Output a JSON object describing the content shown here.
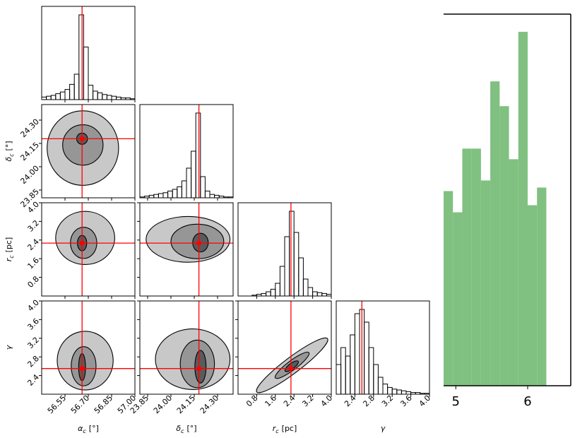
{
  "chart_data": [
    {
      "type": "corner",
      "parameters": [
        {
          "label": {
            "symbol": "α",
            "sub": "c",
            "unit": "[°]"
          },
          "lim": [
            56.4,
            57.0
          ],
          "ticks": [
            56.55,
            {
              "value": 56.7,
              "label": "56.70"
            },
            56.85,
            {
              "value": 57.0,
              "label": "57.00"
            }
          ],
          "truth": 56.66,
          "bins": [
            56.4,
            56.43,
            56.46,
            56.49,
            56.52,
            56.55,
            56.58,
            56.61,
            56.64,
            56.67,
            56.7,
            56.73,
            56.76,
            56.79,
            56.82,
            56.85,
            56.88,
            56.91,
            56.94,
            56.97,
            57.0
          ],
          "counts": [
            3,
            4,
            5,
            7,
            9,
            12,
            18,
            30,
            100,
            62,
            17,
            10,
            8,
            6,
            5,
            4,
            3,
            2,
            2,
            1
          ]
        },
        {
          "label": {
            "symbol": "δ",
            "sub": "c",
            "unit": "[°]"
          },
          "lim": [
            23.8,
            24.4
          ],
          "ticks": [
            23.85,
            {
              "value": 24.0,
              "label": "24.00"
            },
            24.15,
            {
              "value": 24.3,
              "label": "24.30"
            }
          ],
          "truth": 24.18,
          "bins": [
            23.8,
            23.83,
            23.86,
            23.89,
            23.92,
            23.95,
            23.98,
            24.01,
            24.04,
            24.07,
            24.1,
            24.13,
            24.16,
            24.19,
            24.22,
            24.25,
            24.28,
            24.31,
            24.34,
            24.37,
            24.4
          ],
          "counts": [
            1,
            2,
            3,
            4,
            5,
            6,
            8,
            10,
            13,
            20,
            35,
            55,
            100,
            25,
            8,
            4,
            3,
            2,
            1,
            1
          ]
        },
        {
          "label": {
            "symbol": "r",
            "sub": "c",
            "unit": "[pc]"
          },
          "lim": [
            0.0,
            4.0
          ],
          "ticks": [
            0.8,
            1.6,
            2.4,
            3.2,
            {
              "value": 4.0,
              "label": "4.0"
            }
          ],
          "truth": 2.27,
          "bins": [
            0.0,
            0.2,
            0.4,
            0.6,
            0.8,
            1.0,
            1.2,
            1.4,
            1.6,
            1.8,
            2.0,
            2.2,
            2.4,
            2.6,
            2.8,
            3.0,
            3.2,
            3.4,
            3.6,
            3.8,
            4.0
          ],
          "counts": [
            0,
            0,
            0,
            1,
            2,
            3,
            5,
            8,
            15,
            35,
            70,
            100,
            75,
            45,
            20,
            10,
            5,
            4,
            3,
            2
          ]
        },
        {
          "label": {
            "symbol": "γ"
          },
          "lim": [
            2.0,
            4.0
          ],
          "ticks": [
            2.4,
            2.8,
            3.2,
            3.6,
            {
              "value": 4.0,
              "label": "4.0"
            }
          ],
          "truth": 2.55,
          "bins": [
            2.0,
            2.1,
            2.2,
            2.3,
            2.4,
            2.5,
            2.6,
            2.7,
            2.8,
            2.9,
            3.0,
            3.1,
            3.2,
            3.3,
            3.4,
            3.5,
            3.6,
            3.7,
            3.8,
            3.9,
            4.0
          ],
          "counts": [
            35,
            55,
            45,
            70,
            95,
            100,
            85,
            55,
            35,
            20,
            12,
            8,
            6,
            5,
            4,
            3,
            2,
            2,
            1,
            1
          ]
        }
      ],
      "hist_ylim": [
        0,
        110
      ],
      "hist_color": "#000000",
      "truth_color": "#ff0000",
      "contour_colors": [
        "#c8c8c8",
        "#969696",
        "#5a5a5a"
      ],
      "contours": [
        {
          "ellipses": [
            {
              "cx": 56.665,
              "cy": 24.12,
              "rx": 0.23,
              "ry": 0.24
            },
            {
              "cx": 56.665,
              "cy": 24.14,
              "rx": 0.13,
              "ry": 0.13
            },
            {
              "cx": 56.66,
              "cy": 24.18,
              "rx": 0.035,
              "ry": 0.036
            }
          ]
        },
        {
          "ellipses": [
            {
              "cx": 56.68,
              "cy": 2.49,
              "rx": 0.19,
              "ry": 1.14
            },
            {
              "cx": 56.67,
              "cy": 2.28,
              "rx": 0.085,
              "ry": 0.67
            },
            {
              "cx": 56.66,
              "cy": 2.27,
              "rx": 0.03,
              "ry": 0.33
            }
          ]
        },
        {
          "ellipses": [
            {
              "cx": 24.11,
              "cy": 2.43,
              "rx": 0.27,
              "ry": 0.98
            },
            {
              "cx": 24.17,
              "cy": 2.34,
              "rx": 0.17,
              "ry": 0.74
            },
            {
              "cx": 24.19,
              "cy": 2.29,
              "rx": 0.05,
              "ry": 0.4
            }
          ]
        },
        {
          "ellipses": [
            {
              "cx": 56.68,
              "cy": 2.72,
              "rx": 0.18,
              "ry": 0.63
            },
            {
              "cx": 56.67,
              "cy": 2.6,
              "rx": 0.08,
              "ry": 0.42
            },
            {
              "cx": 56.66,
              "cy": 2.58,
              "rx": 0.022,
              "ry": 0.29
            }
          ]
        },
        {
          "ellipses": [
            {
              "cx": 24.14,
              "cy": 2.75,
              "rx": 0.24,
              "ry": 0.65
            },
            {
              "cx": 24.17,
              "cy": 2.65,
              "rx": 0.11,
              "ry": 0.51
            },
            {
              "cx": 24.19,
              "cy": 2.59,
              "rx": 0.036,
              "ry": 0.35
            }
          ]
        },
        {
          "ellipses": [
            {
              "cx": 2.32,
              "cy": 2.62,
              "rx": 1.9,
              "ry": 0.17,
              "angle": -37
            },
            {
              "cx": 2.32,
              "cy": 2.62,
              "rx": 0.9,
              "ry": 0.1,
              "angle": -37
            },
            {
              "cx": 2.3,
              "cy": 2.6,
              "rx": 0.35,
              "ry": 0.06,
              "angle": -37
            }
          ]
        }
      ]
    },
    {
      "type": "histogram",
      "color": "#80c080",
      "bins": [
        4.83,
        4.96,
        5.09,
        5.22,
        5.35,
        5.48,
        5.61,
        5.74,
        5.87,
        6.0,
        6.13,
        6.26
      ],
      "counts": [
        55,
        49,
        67,
        67,
        58,
        86,
        79,
        64,
        100,
        51,
        56
      ],
      "xlim": [
        4.83,
        6.6
      ],
      "xticks": [
        5,
        6
      ],
      "ylim": [
        0,
        105
      ]
    }
  ]
}
